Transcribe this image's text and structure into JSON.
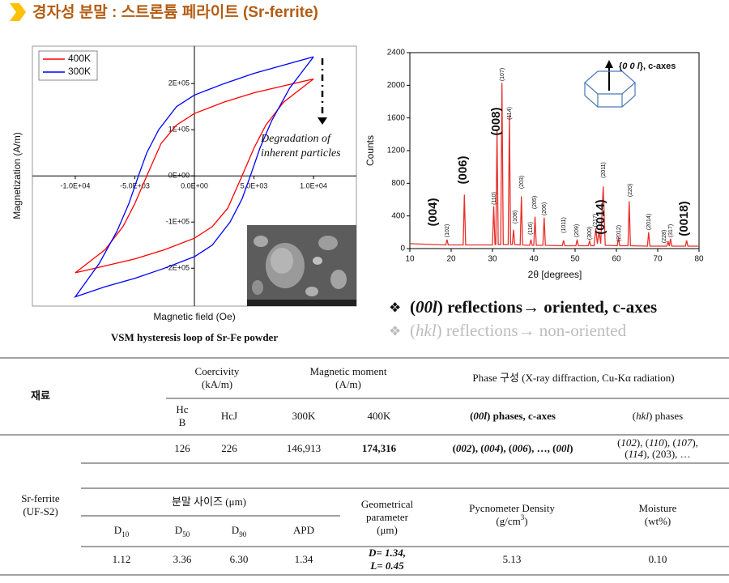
{
  "header": {
    "title": "경자성 분말 : 스트론튬 페라이트 (Sr-ferrite)"
  },
  "chart_data": [
    {
      "type": "line",
      "x_label": "Magnetic field (Oe)",
      "y_label": "Magnetization (A/m)",
      "caption": "VSM hysteresis loop of Sr-Fe powder",
      "annotation": [
        "Degradation of",
        "inherent particles"
      ],
      "xlim": [
        -13600,
        13600
      ],
      "ylim": [
        -282000,
        281000
      ],
      "xticks": [
        {
          "value": -10000,
          "label": "-1.0E+04"
        },
        {
          "value": -5000,
          "label": "-5.0E+03"
        },
        {
          "value": 0,
          "label": "0.0E+00"
        },
        {
          "value": 5000,
          "label": "5.0E+03"
        },
        {
          "value": 10000,
          "label": "1.0E+04"
        }
      ],
      "yticks": [
        {
          "value": -200000,
          "label": "-2E+05"
        },
        {
          "value": -100000,
          "label": "-1E+05"
        },
        {
          "value": 0,
          "label": "0E+00"
        },
        {
          "value": 100000,
          "label": "1E+05"
        },
        {
          "value": 200000,
          "label": "2E+05"
        }
      ],
      "legend": "upper left",
      "series": [
        {
          "name": "400K",
          "color": "#ff0000",
          "x": [
            10000,
            7500,
            5000,
            2500,
            0,
            -1500,
            -2800,
            -4000,
            -5000,
            -6000,
            -7500,
            -10000,
            -7500,
            -5000,
            -2500,
            0,
            1500,
            2800,
            4000,
            5000,
            6000,
            7500,
            10000
          ],
          "values": [
            210000,
            195000,
            180000,
            160000,
            135000,
            110000,
            70000,
            0,
            -60000,
            -110000,
            -160000,
            -210000,
            -195000,
            -180000,
            -160000,
            -135000,
            -110000,
            -70000,
            0,
            60000,
            110000,
            160000,
            210000
          ]
        },
        {
          "name": "300K",
          "color": "#0000ff",
          "x": [
            10000,
            7500,
            5000,
            2500,
            0,
            -1500,
            -3000,
            -4000,
            -4700,
            -5500,
            -6500,
            -8000,
            -10000,
            -7500,
            -5000,
            -2500,
            0,
            1500,
            3000,
            4000,
            4700,
            5500,
            6500,
            8000,
            10000
          ],
          "values": [
            258000,
            240000,
            222000,
            200000,
            175000,
            150000,
            100000,
            50000,
            0,
            -60000,
            -120000,
            -190000,
            -262000,
            -240000,
            -222000,
            -200000,
            -175000,
            -150000,
            -100000,
            -50000,
            0,
            60000,
            120000,
            190000,
            258000
          ]
        }
      ]
    },
    {
      "type": "line",
      "x_label": "2θ [degrees]",
      "y_label": "Counts",
      "annotation": [
        [
          "{",
          {
            "i": "0 0 l"
          },
          "}, c-axes"
        ]
      ],
      "xlim": [
        10,
        80
      ],
      "ylim": [
        0,
        2400
      ],
      "xticks": [
        10,
        20,
        30,
        40,
        50,
        60,
        70,
        80
      ],
      "yticks": [
        0,
        400,
        800,
        1200,
        1600,
        2000,
        2400
      ],
      "peak_labels": [
        "(102)",
        "(110)",
        "(107)",
        "(114)",
        "(108)",
        "(203)",
        "(116)",
        "(205)",
        "(206)",
        "(1011)",
        "(209)",
        "(300)",
        "(217)",
        "(2011)",
        "(2012)",
        "(220)",
        "(2014)",
        "(228)",
        "(317)"
      ],
      "reflection_labels": [
        "(004)",
        "(006)",
        "(008)",
        "(0014)",
        "(0018)"
      ],
      "series": [
        {
          "color": "#e8302a",
          "x": [
            10,
            18.7,
            19,
            19.3,
            22.9,
            23.2,
            23.5,
            30.0,
            30.3,
            30.6,
            30.8,
            31.1,
            31.4,
            32.0,
            32.3,
            32.6,
            33.8,
            34.1,
            34.4,
            34.8,
            35.1,
            35.4,
            36.7,
            37.0,
            37.3,
            39.0,
            39.3,
            39.6,
            40.0,
            40.3,
            40.6,
            42.2,
            42.5,
            42.8,
            46.9,
            47.2,
            47.5,
            50.2,
            50.5,
            50.8,
            53.2,
            53.5,
            53.8,
            54.6,
            55.0,
            55.4,
            55.8,
            56.2,
            56.8,
            57.3,
            60.2,
            60.5,
            60.8,
            62.8,
            63.1,
            63.4,
            67.5,
            67.8,
            68.1,
            72.2,
            72.5,
            72.8,
            73.1,
            73.4,
            76.7,
            77.0,
            77.3,
            80
          ],
          "values": [
            60,
            45,
            110,
            45,
            45,
            660,
            45,
            45,
            520,
            50,
            50,
            1460,
            50,
            50,
            2030,
            50,
            50,
            1640,
            50,
            50,
            230,
            50,
            45,
            640,
            45,
            40,
            110,
            40,
            40,
            390,
            40,
            40,
            380,
            40,
            35,
            100,
            35,
            35,
            110,
            35,
            35,
            90,
            35,
            35,
            250,
            60,
            210,
            60,
            760,
            40,
            35,
            130,
            35,
            35,
            580,
            35,
            30,
            200,
            30,
            30,
            90,
            30,
            120,
            30,
            30,
            100,
            30,
            30
          ]
        }
      ]
    }
  ],
  "bullets": [
    {
      "mark": "❖",
      "text": [
        [
          "(",
          {
            "i": "00l"
          },
          ") reflections→ oriented, c-axes"
        ]
      ]
    },
    {
      "mark": "❖",
      "text": [
        [
          "(",
          {
            "i": "hkl"
          },
          ") reflections→ non-oriented"
        ]
      ]
    }
  ],
  "table": {
    "material": "재료",
    "coercivity": [
      "Coercivity",
      "(kA/m)"
    ],
    "magnetic_moment": [
      "Magnetic moment",
      "(A/m)"
    ],
    "phase": "Phase 구성 (X-ray diffraction, Cu-Kα radiation)",
    "hcb": [
      "Hc",
      "B"
    ],
    "hcj": "HcJ",
    "m300": "300K",
    "m400": "400K",
    "phase_00l": [
      [
        "(",
        {
          "i": "00l"
        },
        ") phases, c-axes"
      ]
    ],
    "phase_hkl": [
      [
        "(",
        {
          "i": "hkl"
        },
        ") phases"
      ]
    ],
    "hcb_value": "126",
    "hcj_value": "226",
    "m300_value": "146,913",
    "m400_value": "174,316",
    "row_00l": [
      [
        "(",
        {
          "i": "002"
        },
        "), (",
        {
          "i": "004"
        },
        "), (",
        {
          "i": "006"
        },
        "), …, (",
        {
          "i": "00l"
        },
        ")"
      ]
    ],
    "row_hkl": [
      [
        "(",
        {
          "i": "102"
        },
        "), (",
        {
          "i": "110"
        },
        "), (",
        {
          "i": "107"
        },
        "),"
      ],
      [
        "(",
        {
          "i": "114"
        },
        "), (203), …"
      ]
    ],
    "sample": [
      "Sr-ferrite",
      "(UF-S2)"
    ],
    "powder_size": "분말 사이즈 (μm)",
    "geometric": [
      "Geometrical",
      "parameter",
      "(μm)"
    ],
    "density": [
      "Pycnometer Density",
      [
        "(g/cm",
        {
          "sup": "3"
        },
        ")"
      ]
    ],
    "moisture": [
      "Moisture",
      "(wt%)"
    ],
    "d10": [
      [
        "D",
        {
          "sub": "10"
        }
      ]
    ],
    "d50": [
      [
        "D",
        {
          "sub": "50"
        }
      ]
    ],
    "d90": [
      [
        "D",
        {
          "sub": "90"
        }
      ]
    ],
    "apd": "APD",
    "d10_value": "1.12",
    "d50_value": "3.36",
    "d90_value": "6.30",
    "apd_value": "1.34",
    "geometric_value": [
      "D= 1.34,",
      "L= 0.45"
    ],
    "density_value": "5.13",
    "moisture_value": "0.10"
  }
}
